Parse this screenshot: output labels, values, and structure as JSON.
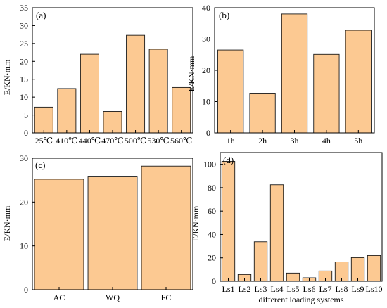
{
  "colors": {
    "bar_fill": "#FCC992",
    "bar_stroke": "#1a1a1a",
    "axis": "#000000"
  },
  "chart_data": [
    {
      "panel": "(a)",
      "type": "bar",
      "categories": [
        "25℃",
        "410℃",
        "440℃",
        "470℃",
        "500℃",
        "530℃",
        "560℃"
      ],
      "values": [
        7.2,
        12.4,
        22.0,
        6.0,
        27.3,
        23.4,
        12.7
      ],
      "ylabel": "E/KN·mm",
      "xlabel": "",
      "ylim": [
        0,
        35
      ],
      "yticks": [
        0,
        5,
        10,
        15,
        20,
        25,
        30,
        35
      ],
      "grid": false
    },
    {
      "panel": "(b)",
      "type": "bar",
      "categories": [
        "1h",
        "2h",
        "3h",
        "4h",
        "5h"
      ],
      "values": [
        26.5,
        12.7,
        38.0,
        25.1,
        32.8
      ],
      "ylabel": "E/KN·mm",
      "xlabel": "",
      "ylim": [
        0,
        40
      ],
      "yticks": [
        0,
        10,
        20,
        30,
        40
      ],
      "grid": false
    },
    {
      "panel": "(c)",
      "type": "bar",
      "categories": [
        "AC",
        "WQ",
        "FC"
      ],
      "values": [
        25.2,
        25.9,
        28.2
      ],
      "ylabel": "E/KN·mm",
      "xlabel": "",
      "ylim": [
        0,
        30
      ],
      "yticks": [
        0,
        10,
        20,
        30
      ],
      "grid": false
    },
    {
      "panel": "(d)",
      "type": "bar",
      "categories": [
        "Ls1",
        "Ls2",
        "Ls3",
        "Ls4",
        "Ls5",
        "Ls6",
        "Ls7",
        "Ls8",
        "Ls9",
        "Ls10"
      ],
      "values": [
        102.5,
        5.8,
        33.8,
        82.5,
        7.0,
        3.0,
        8.8,
        16.5,
        20.2,
        22.0
      ],
      "ylabel": "E/KN·mm",
      "xlabel": "different loading systems",
      "ylim": [
        0,
        110
      ],
      "yticks": [
        0,
        20,
        40,
        60,
        80,
        100
      ],
      "grid": false
    }
  ]
}
